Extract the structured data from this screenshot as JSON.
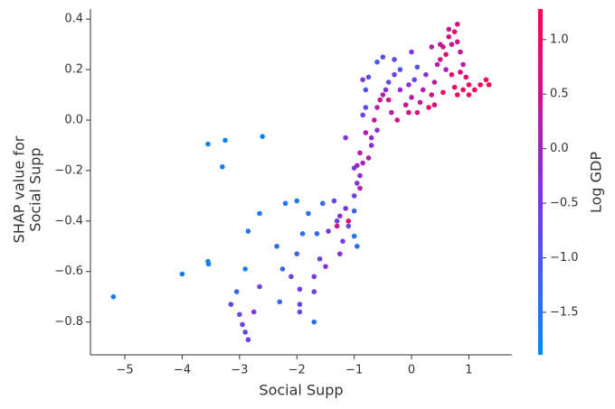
{
  "chart_data": {
    "type": "scatter",
    "xlabel": "Social Supp",
    "ylabel": [
      "SHAP value for",
      "Social Supp"
    ],
    "colorbar_label": "Log GDP",
    "cmap": [
      "#008bfb",
      "#8a2ed8",
      "#ff0052"
    ],
    "clim": [
      -1.89,
      1.28
    ],
    "cticks": [
      {
        "value": -1.5,
        "label": "−1.5"
      },
      {
        "value": -1.0,
        "label": "−1.0"
      },
      {
        "value": -0.5,
        "label": "−0.5"
      },
      {
        "value": 0.0,
        "label": "0.0"
      },
      {
        "value": 0.5,
        "label": "0.5"
      },
      {
        "value": 1.0,
        "label": "1.0"
      }
    ],
    "xlim": [
      -5.6,
      1.75
    ],
    "ylim": [
      -0.93,
      0.44
    ],
    "xticks": [
      {
        "value": -5,
        "label": "−5"
      },
      {
        "value": -4,
        "label": "−4"
      },
      {
        "value": -3,
        "label": "−3"
      },
      {
        "value": -2,
        "label": "−2"
      },
      {
        "value": -1,
        "label": "−1"
      },
      0,
      1
    ],
    "yticks": [
      {
        "value": -0.8,
        "label": "−0.8"
      },
      {
        "value": -0.6,
        "label": "−0.6"
      },
      {
        "value": -0.4,
        "label": "−0.4"
      },
      {
        "value": -0.2,
        "label": "−0.2"
      },
      {
        "value": 0.0,
        "label": "0.0"
      },
      {
        "value": 0.2,
        "label": "0.2"
      },
      {
        "value": 0.4,
        "label": "0.4"
      }
    ],
    "x": [
      -5.2,
      -4.0,
      -3.55,
      -3.54,
      -3.55,
      -3.25,
      -3.3,
      -2.6,
      -2.9,
      -2.85,
      -2.65,
      -2.35,
      -2.2,
      -2.0,
      -2.3,
      -1.7,
      -2.25,
      -2.0,
      -1.9,
      -1.65,
      -1.8,
      -1.55,
      -1.0,
      -0.95,
      -1.0,
      -3.05,
      -3.0,
      -2.95,
      -2.9,
      -2.85,
      -3.15,
      -2.75,
      -2.65,
      -2.1,
      -1.95,
      -1.95,
      -1.95,
      -1.7,
      -1.7,
      -1.6,
      -1.5,
      -1.45,
      -1.35,
      -1.3,
      -1.25,
      -1.15,
      -1.1,
      -1.2,
      -1.25,
      -1.3,
      -1.1,
      -1.0,
      -0.95,
      -0.9,
      -0.95,
      -0.85,
      -1.0,
      -0.9,
      -0.75,
      -0.7,
      -0.8,
      -0.7,
      -0.9,
      -1.15,
      -0.85,
      -0.8,
      -0.65,
      -0.6,
      -0.6,
      -0.55,
      -0.8,
      -0.75,
      -0.5,
      -0.45,
      -0.4,
      -0.35,
      -0.4,
      -0.3,
      -0.2,
      -0.2,
      -0.1,
      -0.05,
      0.0,
      0.05,
      0.1,
      0.1,
      0.15,
      0.2,
      0.25,
      0.3,
      0.35,
      0.4,
      0.45,
      0.5,
      0.55,
      0.6,
      0.65,
      0.7,
      0.75,
      0.8,
      0.85,
      0.9,
      0.5,
      0.6,
      0.7,
      0.75,
      0.8,
      0.9,
      1.0,
      1.1,
      1.2,
      1.3,
      1.35,
      1.0,
      0.95,
      0.85,
      0.4,
      0.55,
      -0.6,
      -0.5,
      -0.3,
      0.0,
      -0.05,
      -0.25,
      0.35,
      0.8,
      0.65,
      -0.85
    ],
    "values": [
      -0.7,
      -0.61,
      -0.56,
      -0.57,
      -0.095,
      -0.08,
      -0.185,
      -0.065,
      -0.59,
      -0.44,
      -0.37,
      -0.5,
      -0.33,
      -0.32,
      -0.72,
      -0.8,
      -0.59,
      -0.53,
      -0.45,
      -0.45,
      -0.37,
      -0.33,
      -0.46,
      -0.5,
      -0.36,
      -0.68,
      -0.77,
      -0.81,
      -0.84,
      -0.87,
      -0.73,
      -0.76,
      -0.66,
      -0.62,
      -0.67,
      -0.73,
      -0.76,
      -0.62,
      -0.68,
      -0.55,
      -0.58,
      -0.44,
      -0.32,
      -0.4,
      -0.53,
      -0.35,
      -0.42,
      -0.48,
      -0.38,
      -0.42,
      -0.4,
      -0.3,
      -0.25,
      -0.22,
      -0.18,
      -0.17,
      -0.19,
      -0.27,
      -0.15,
      -0.1,
      -0.05,
      -0.07,
      -0.13,
      -0.07,
      0.02,
      0.05,
      0.0,
      0.05,
      -0.04,
      0.08,
      0.12,
      0.17,
      0.1,
      0.12,
      0.08,
      0.03,
      0.15,
      0.18,
      0.12,
      0.2,
      0.06,
      0.14,
      0.09,
      0.16,
      0.21,
      0.03,
      0.07,
      0.12,
      0.18,
      0.05,
      0.1,
      0.15,
      0.22,
      0.24,
      0.29,
      0.26,
      0.33,
      0.3,
      0.35,
      0.31,
      0.27,
      0.22,
      0.3,
      0.2,
      0.18,
      0.13,
      0.1,
      0.12,
      0.14,
      0.12,
      0.14,
      0.16,
      0.14,
      0.1,
      0.17,
      0.19,
      0.06,
      0.11,
      0.23,
      0.25,
      0.24,
      0.27,
      0.03,
      0.0,
      0.29,
      0.38,
      0.36,
      0.16
    ],
    "color_values": [
      -1.75,
      -1.7,
      -1.7,
      -1.7,
      -1.75,
      -1.7,
      -1.75,
      -1.7,
      -1.6,
      -1.5,
      -1.5,
      -1.4,
      -1.5,
      -1.6,
      -1.3,
      -1.5,
      -1.3,
      -1.2,
      -1.4,
      -1.3,
      -1.4,
      -1.2,
      -1.5,
      -1.4,
      -1.3,
      -1.3,
      -0.8,
      -0.6,
      -0.7,
      -0.6,
      -0.7,
      -0.5,
      -0.6,
      -0.7,
      -0.6,
      -0.7,
      -0.8,
      -0.5,
      -0.6,
      -0.6,
      -0.4,
      -0.5,
      -0.7,
      -0.6,
      -0.3,
      -0.5,
      -0.8,
      -0.6,
      -0.4,
      0.6,
      0.8,
      -0.6,
      -0.4,
      -0.2,
      -0.1,
      0.0,
      -0.5,
      0.2,
      0.1,
      -0.3,
      0.2,
      -0.2,
      0.3,
      -0.4,
      -0.6,
      -0.8,
      0.4,
      0.2,
      -0.3,
      0.5,
      -1.0,
      -0.9,
      0.3,
      -0.4,
      0.6,
      0.3,
      -0.8,
      -0.6,
      -0.2,
      -1.0,
      0.5,
      -0.3,
      0.2,
      -0.7,
      -0.9,
      0.8,
      0.5,
      0.3,
      -0.4,
      0.9,
      0.7,
      0.4,
      0.2,
      0.6,
      0.7,
      0.9,
      0.8,
      0.5,
      0.9,
      0.6,
      0.4,
      0.3,
      0.5,
      0.0,
      1.0,
      1.1,
      1.2,
      1.1,
      1.2,
      1.2,
      1.25,
      1.2,
      1.25,
      1.1,
      1.0,
      0.9,
      0.8,
      1.0,
      -1.1,
      -0.9,
      -0.8,
      -0.5,
      0.7,
      0.6,
      0.3,
      0.7,
      0.5,
      -0.5
    ]
  }
}
